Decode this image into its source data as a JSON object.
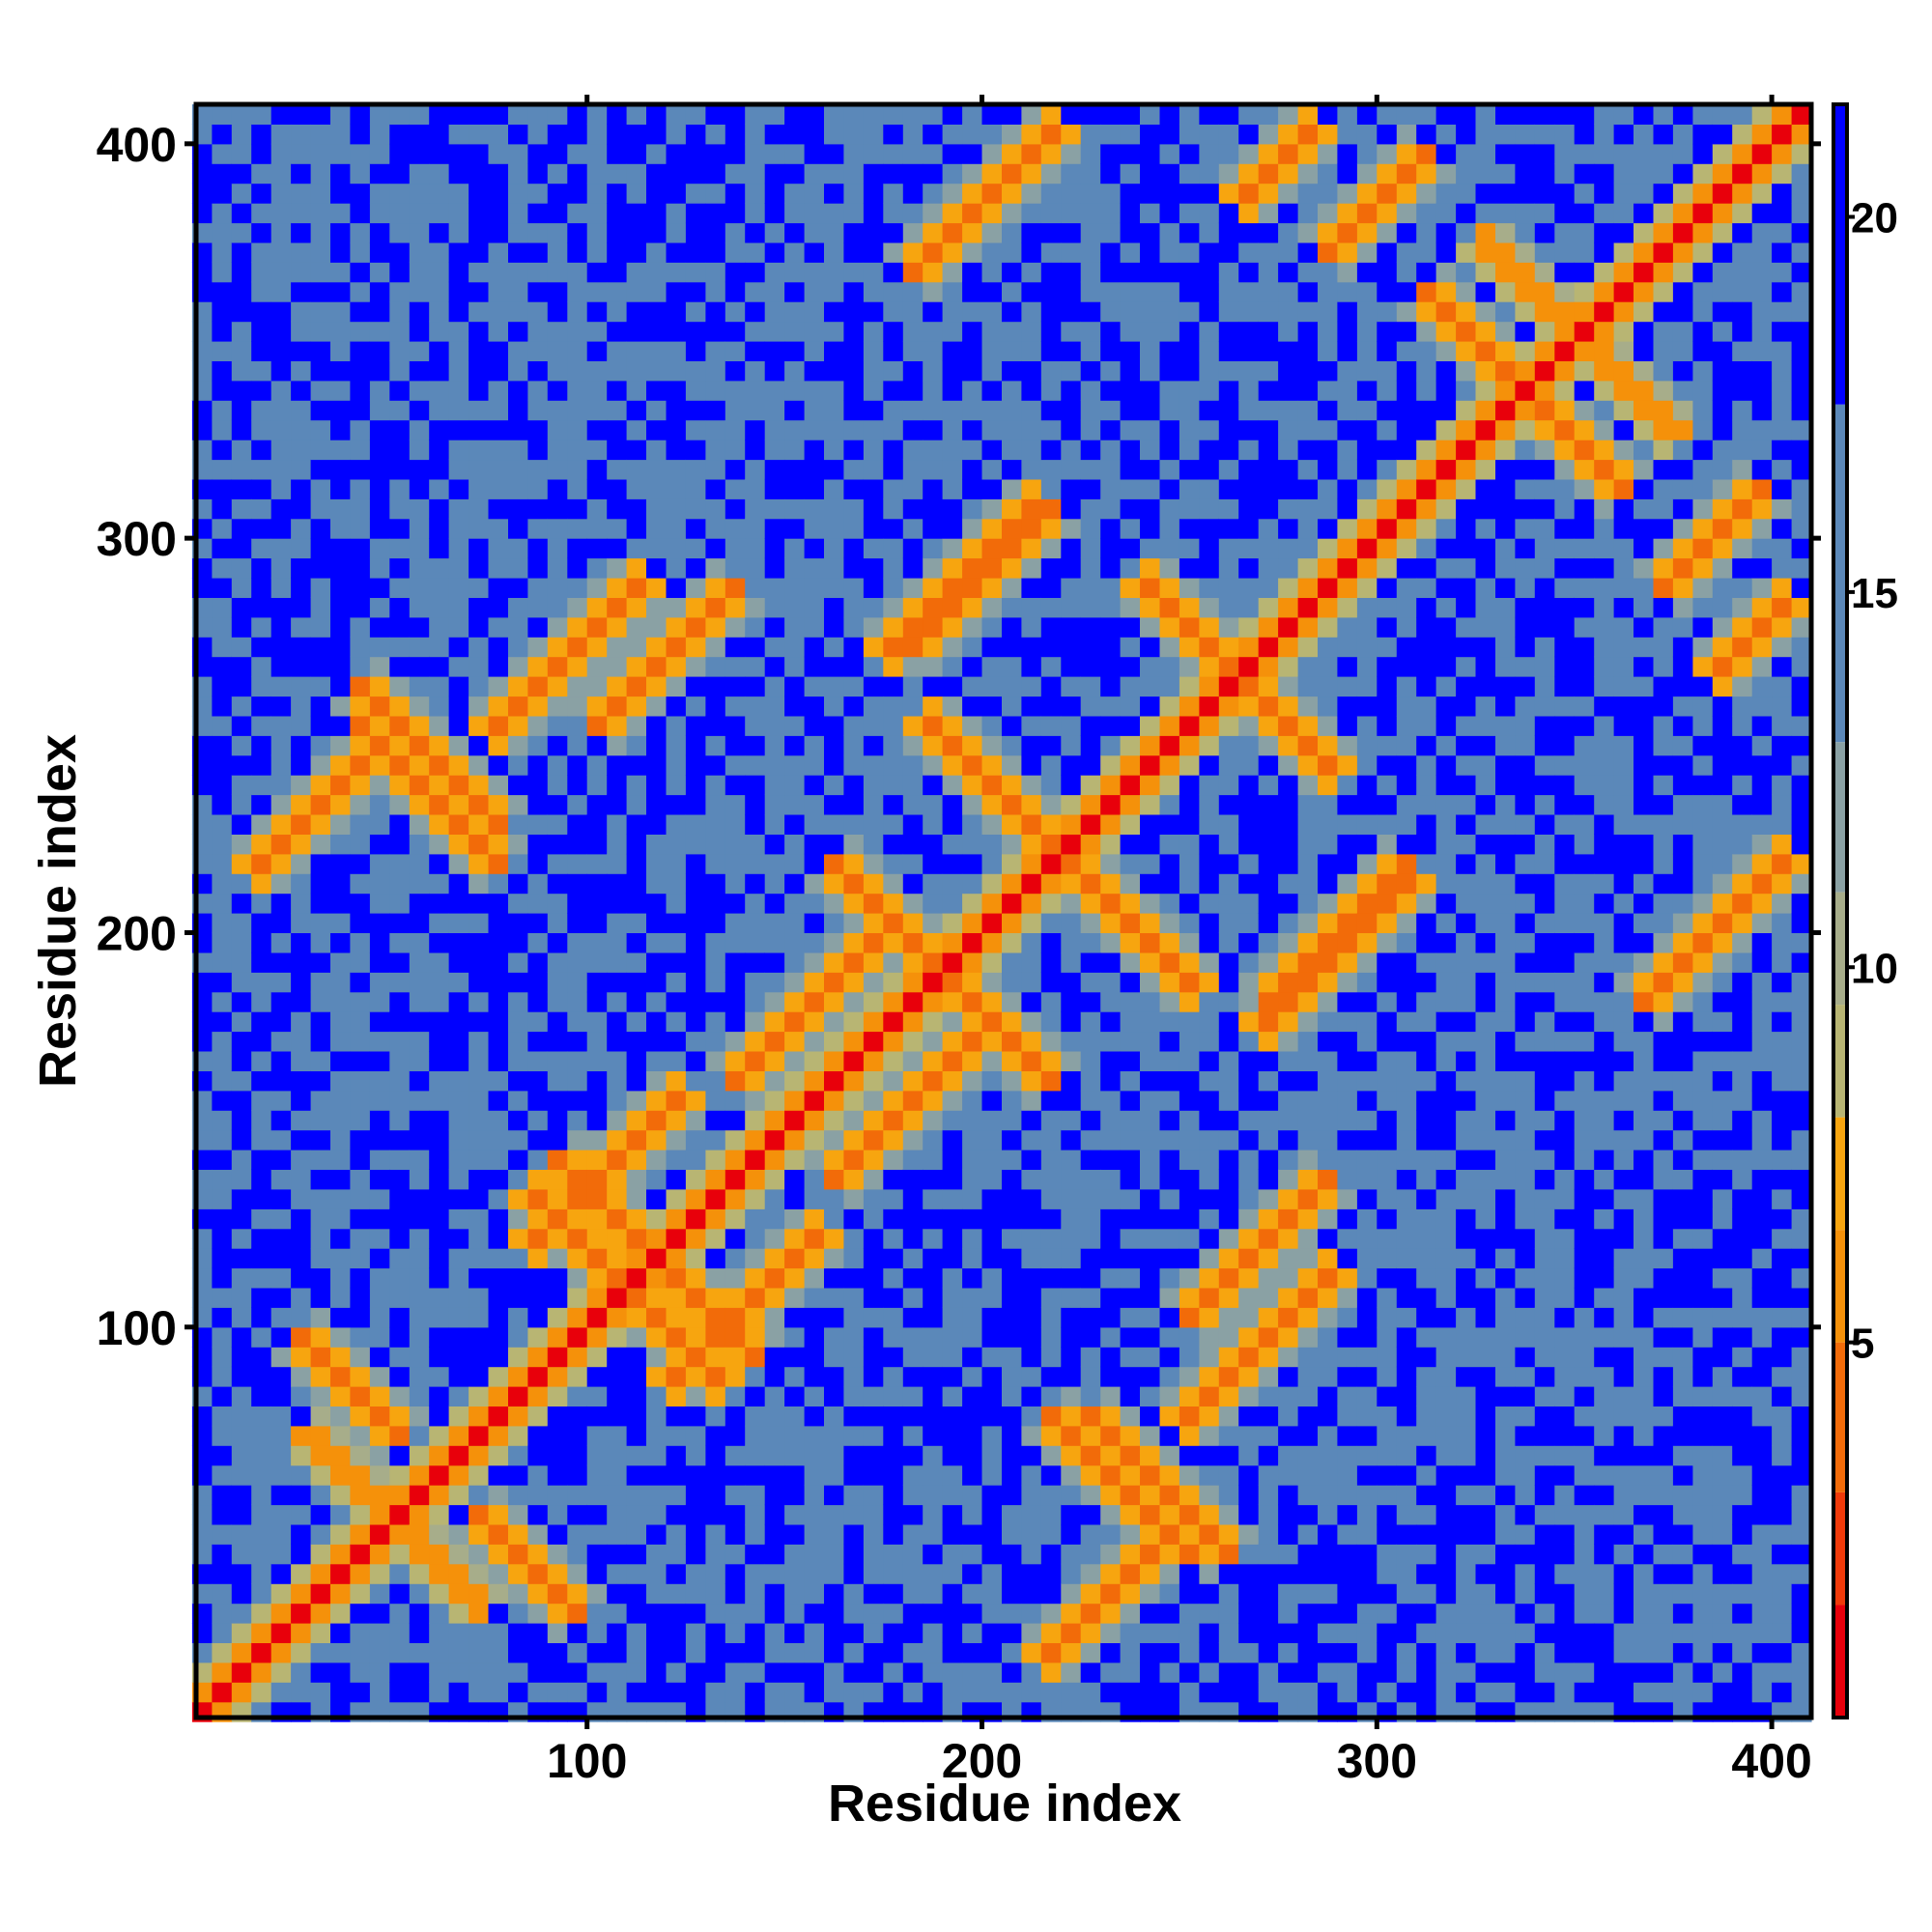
{
  "chart_data": {
    "type": "heatmap",
    "title": "",
    "xlabel": "Residue index",
    "ylabel": "Residue index",
    "xlim": [
      1,
      410
    ],
    "ylim": [
      1,
      410
    ],
    "x_ticks": [
      100,
      200,
      300,
      400
    ],
    "y_ticks": [
      100,
      200,
      300,
      400
    ],
    "colorbar": {
      "range": [
        0,
        21.5
      ],
      "ticks": [
        5,
        10,
        15,
        20
      ],
      "bands": [
        {
          "from": 0,
          "to": 1.5,
          "color": "#e8000b"
        },
        {
          "from": 1.5,
          "to": 3,
          "color": "#f03a0a"
        },
        {
          "from": 3,
          "to": 5,
          "color": "#f26b09"
        },
        {
          "from": 5,
          "to": 6.5,
          "color": "#f5910a"
        },
        {
          "from": 6.5,
          "to": 8,
          "color": "#f7a50f"
        },
        {
          "from": 8,
          "to": 9.5,
          "color": "#b8b573"
        },
        {
          "from": 9.5,
          "to": 11,
          "color": "#a7ad8a"
        },
        {
          "from": 11,
          "to": 13,
          "color": "#8aa1a4"
        },
        {
          "from": 13,
          "to": 17.5,
          "color": "#5b88b9"
        },
        {
          "from": 17.5,
          "to": 21.5,
          "color": "#0000ff"
        }
      ]
    },
    "matrix_note_free": true,
    "contact_bands": [
      {
        "orientation": "anti",
        "center": [
          51,
          51
        ],
        "len": 70
      },
      {
        "orientation": "anti",
        "center": [
          40,
          85
        ],
        "len": 40
      },
      {
        "orientation": "anti",
        "center": [
          105,
          115
        ],
        "len": 60
      },
      {
        "orientation": "anti",
        "center": [
          125,
          110
        ],
        "len": 50
      },
      {
        "orientation": "anti",
        "center": [
          190,
          190
        ],
        "len": 80
      },
      {
        "orientation": "anti",
        "center": [
          235,
          205
        ],
        "len": 60
      },
      {
        "orientation": "anti",
        "center": [
          260,
          270
        ],
        "len": 60
      },
      {
        "orientation": "anti",
        "center": [
          350,
          352
        ],
        "len": 70
      },
      {
        "orientation": "anti",
        "center": [
          345,
          330
        ],
        "len": 50
      },
      {
        "orientation": "anti",
        "center": [
          60,
          235
        ],
        "len": 50
      },
      {
        "orientation": "anti",
        "center": [
          245,
          60
        ],
        "len": 50
      },
      {
        "orientation": "par",
        "center": [
          140,
          105
        ],
        "len": 60
      },
      {
        "orientation": "par",
        "center": [
          155,
          180
        ],
        "len": 50
      },
      {
        "orientation": "par",
        "center": [
          270,
          95
        ],
        "len": 60
      },
      {
        "orientation": "par",
        "center": [
          120,
          270
        ],
        "len": 50
      },
      {
        "orientation": "par",
        "center": [
          30,
          230
        ],
        "len": 45
      },
      {
        "orientation": "par",
        "center": [
          195,
          290
        ],
        "len": 60
      },
      {
        "orientation": "par",
        "center": [
          385,
          200
        ],
        "len": 50
      },
      {
        "orientation": "par",
        "center": [
          205,
          390
        ],
        "len": 45
      },
      {
        "orientation": "par",
        "center": [
          300,
          385
        ],
        "len": 40
      },
      {
        "orientation": "par",
        "center": [
          290,
          200
        ],
        "len": 50
      },
      {
        "orientation": "par",
        "center": [
          395,
          275
        ],
        "len": 35
      }
    ]
  },
  "labels": {
    "xlabel": "Residue index",
    "ylabel": "Residue index"
  }
}
